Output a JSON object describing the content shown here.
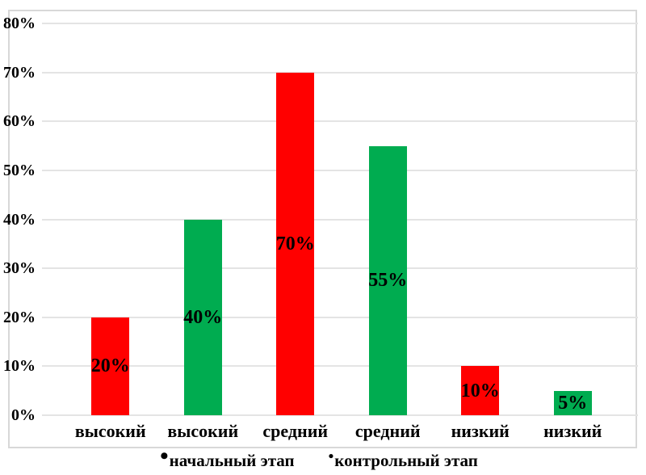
{
  "chart_data": {
    "type": "bar",
    "title": "",
    "categories": [
      "высокий",
      "высокий",
      "средний",
      "средний",
      "низкий",
      "низкий"
    ],
    "bars": [
      {
        "category": "высокий",
        "series": "начальный этап",
        "value": 20,
        "label": "20%",
        "color": "#FF0000"
      },
      {
        "category": "высокий",
        "series": "контрольный этап",
        "value": 40,
        "label": "40%",
        "color": "#00AC50"
      },
      {
        "category": "средний",
        "series": "начальный этап",
        "value": 70,
        "label": "70%",
        "color": "#FF0000"
      },
      {
        "category": "средний",
        "series": "контрольный этап",
        "value": 55,
        "label": "55%",
        "color": "#00AC50"
      },
      {
        "category": "низкий",
        "series": "начальный этап",
        "value": 10,
        "label": "10%",
        "color": "#FF0000"
      },
      {
        "category": "низкий",
        "series": "контрольный этап",
        "value": 5,
        "label": "5%",
        "color": "#00AC50"
      }
    ],
    "series": [
      {
        "name": "начальный этап",
        "color": "#FF0000",
        "categories": [
          "высокий",
          "средний",
          "низкий"
        ],
        "values": [
          20,
          70,
          10
        ]
      },
      {
        "name": "контрольный этап",
        "color": "#00AC50",
        "categories": [
          "высокий",
          "средний",
          "низкий"
        ],
        "values": [
          40,
          55,
          5
        ]
      }
    ],
    "y_axis": {
      "min": 0,
      "max": 80,
      "ticks": [
        0,
        10,
        20,
        30,
        40,
        50,
        60,
        70,
        80
      ],
      "tick_labels": [
        "0%",
        "10%",
        "20%",
        "30%",
        "40%",
        "50%",
        "60%",
        "70%",
        "80%"
      ]
    },
    "grid": true,
    "legend": {
      "position": "bottom",
      "items": [
        {
          "bullet": "•",
          "label": "начальный этап",
          "series_color": "#FF0000"
        },
        {
          "bullet": "•",
          "label": "контрольный этап",
          "series_color": "#00AC50"
        }
      ]
    },
    "colors": {
      "red_series": "#FF0000",
      "green_series": "#00AC50",
      "gridline": "#E4E4E4",
      "frame_border": "#D8D8D8",
      "text": "#000000",
      "background": "#FFFFFF"
    }
  }
}
